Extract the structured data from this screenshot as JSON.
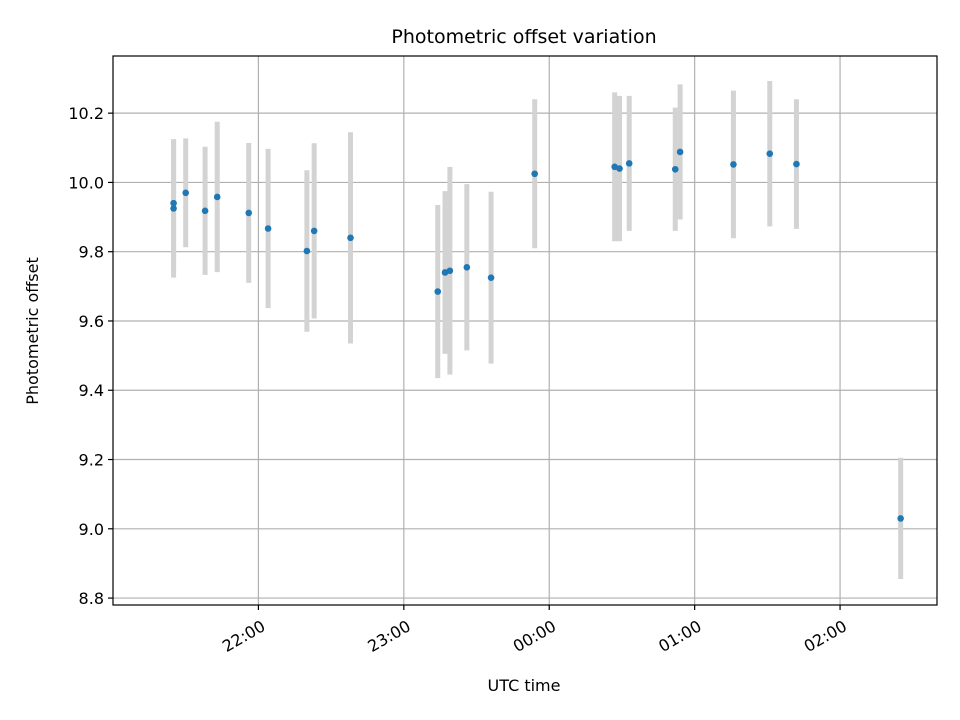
{
  "chart_data": {
    "type": "scatter",
    "title": "Photometric offset variation",
    "xlabel": "UTC time",
    "ylabel": "Photometric offset",
    "x_tick_labels": [
      "22:00",
      "23:00",
      "00:00",
      "01:00",
      "02:00"
    ],
    "x_ticks": [
      "2023-01-01T22:00",
      "2023-01-01T23:00",
      "2023-01-02T00:00",
      "2023-01-02T01:00",
      "2023-01-02T02:00"
    ],
    "xlim": [
      "2023-01-01T21:00",
      "2023-01-02T02:40"
    ],
    "y_ticks": [
      8.8,
      9.0,
      9.2,
      9.4,
      9.6,
      9.8,
      10.0,
      10.2
    ],
    "y_tick_labels": [
      "8.8",
      "9.0",
      "9.2",
      "9.4",
      "9.6",
      "9.8",
      "10.0",
      "10.2"
    ],
    "ylim": [
      8.78,
      10.365
    ],
    "grid": true,
    "point_color": "#1f77b4",
    "errorbar_color": "#d3d3d3",
    "points": [
      {
        "x": "2023-01-01T21:25",
        "y": 9.925,
        "err": 0.2
      },
      {
        "x": "2023-01-01T21:25",
        "y": 9.94,
        "err": 0.18
      },
      {
        "x": "2023-01-01T21:30",
        "y": 9.97,
        "err": 0.157
      },
      {
        "x": "2023-01-01T21:38",
        "y": 9.918,
        "err": 0.185
      },
      {
        "x": "2023-01-01T21:43",
        "y": 9.958,
        "err": 0.217
      },
      {
        "x": "2023-01-01T21:56",
        "y": 9.912,
        "err": 0.202
      },
      {
        "x": "2023-01-01T22:04",
        "y": 9.867,
        "err": 0.23
      },
      {
        "x": "2023-01-01T22:20",
        "y": 9.802,
        "err": 0.233
      },
      {
        "x": "2023-01-01T22:23",
        "y": 9.86,
        "err": 0.253
      },
      {
        "x": "2023-01-01T22:38",
        "y": 9.84,
        "err": 0.305
      },
      {
        "x": "2023-01-01T23:14",
        "y": 9.685,
        "err": 0.25
      },
      {
        "x": "2023-01-01T23:17",
        "y": 9.74,
        "err": 0.235
      },
      {
        "x": "2023-01-01T23:19",
        "y": 9.745,
        "err": 0.3
      },
      {
        "x": "2023-01-01T23:26",
        "y": 9.755,
        "err": 0.24
      },
      {
        "x": "2023-01-01T23:36",
        "y": 9.725,
        "err": 0.248
      },
      {
        "x": "2023-01-01T23:54",
        "y": 10.025,
        "err": 0.215
      },
      {
        "x": "2023-01-02T00:27",
        "y": 10.045,
        "err": 0.215
      },
      {
        "x": "2023-01-02T00:29",
        "y": 10.04,
        "err": 0.21
      },
      {
        "x": "2023-01-02T00:33",
        "y": 10.055,
        "err": 0.195
      },
      {
        "x": "2023-01-02T00:52",
        "y": 10.038,
        "err": 0.178
      },
      {
        "x": "2023-01-02T00:54",
        "y": 10.088,
        "err": 0.195
      },
      {
        "x": "2023-01-02T01:16",
        "y": 10.052,
        "err": 0.213
      },
      {
        "x": "2023-01-02T01:31",
        "y": 10.083,
        "err": 0.21
      },
      {
        "x": "2023-01-02T01:42",
        "y": 10.053,
        "err": 0.187
      },
      {
        "x": "2023-01-02T02:25",
        "y": 9.03,
        "err": 0.175
      }
    ]
  }
}
